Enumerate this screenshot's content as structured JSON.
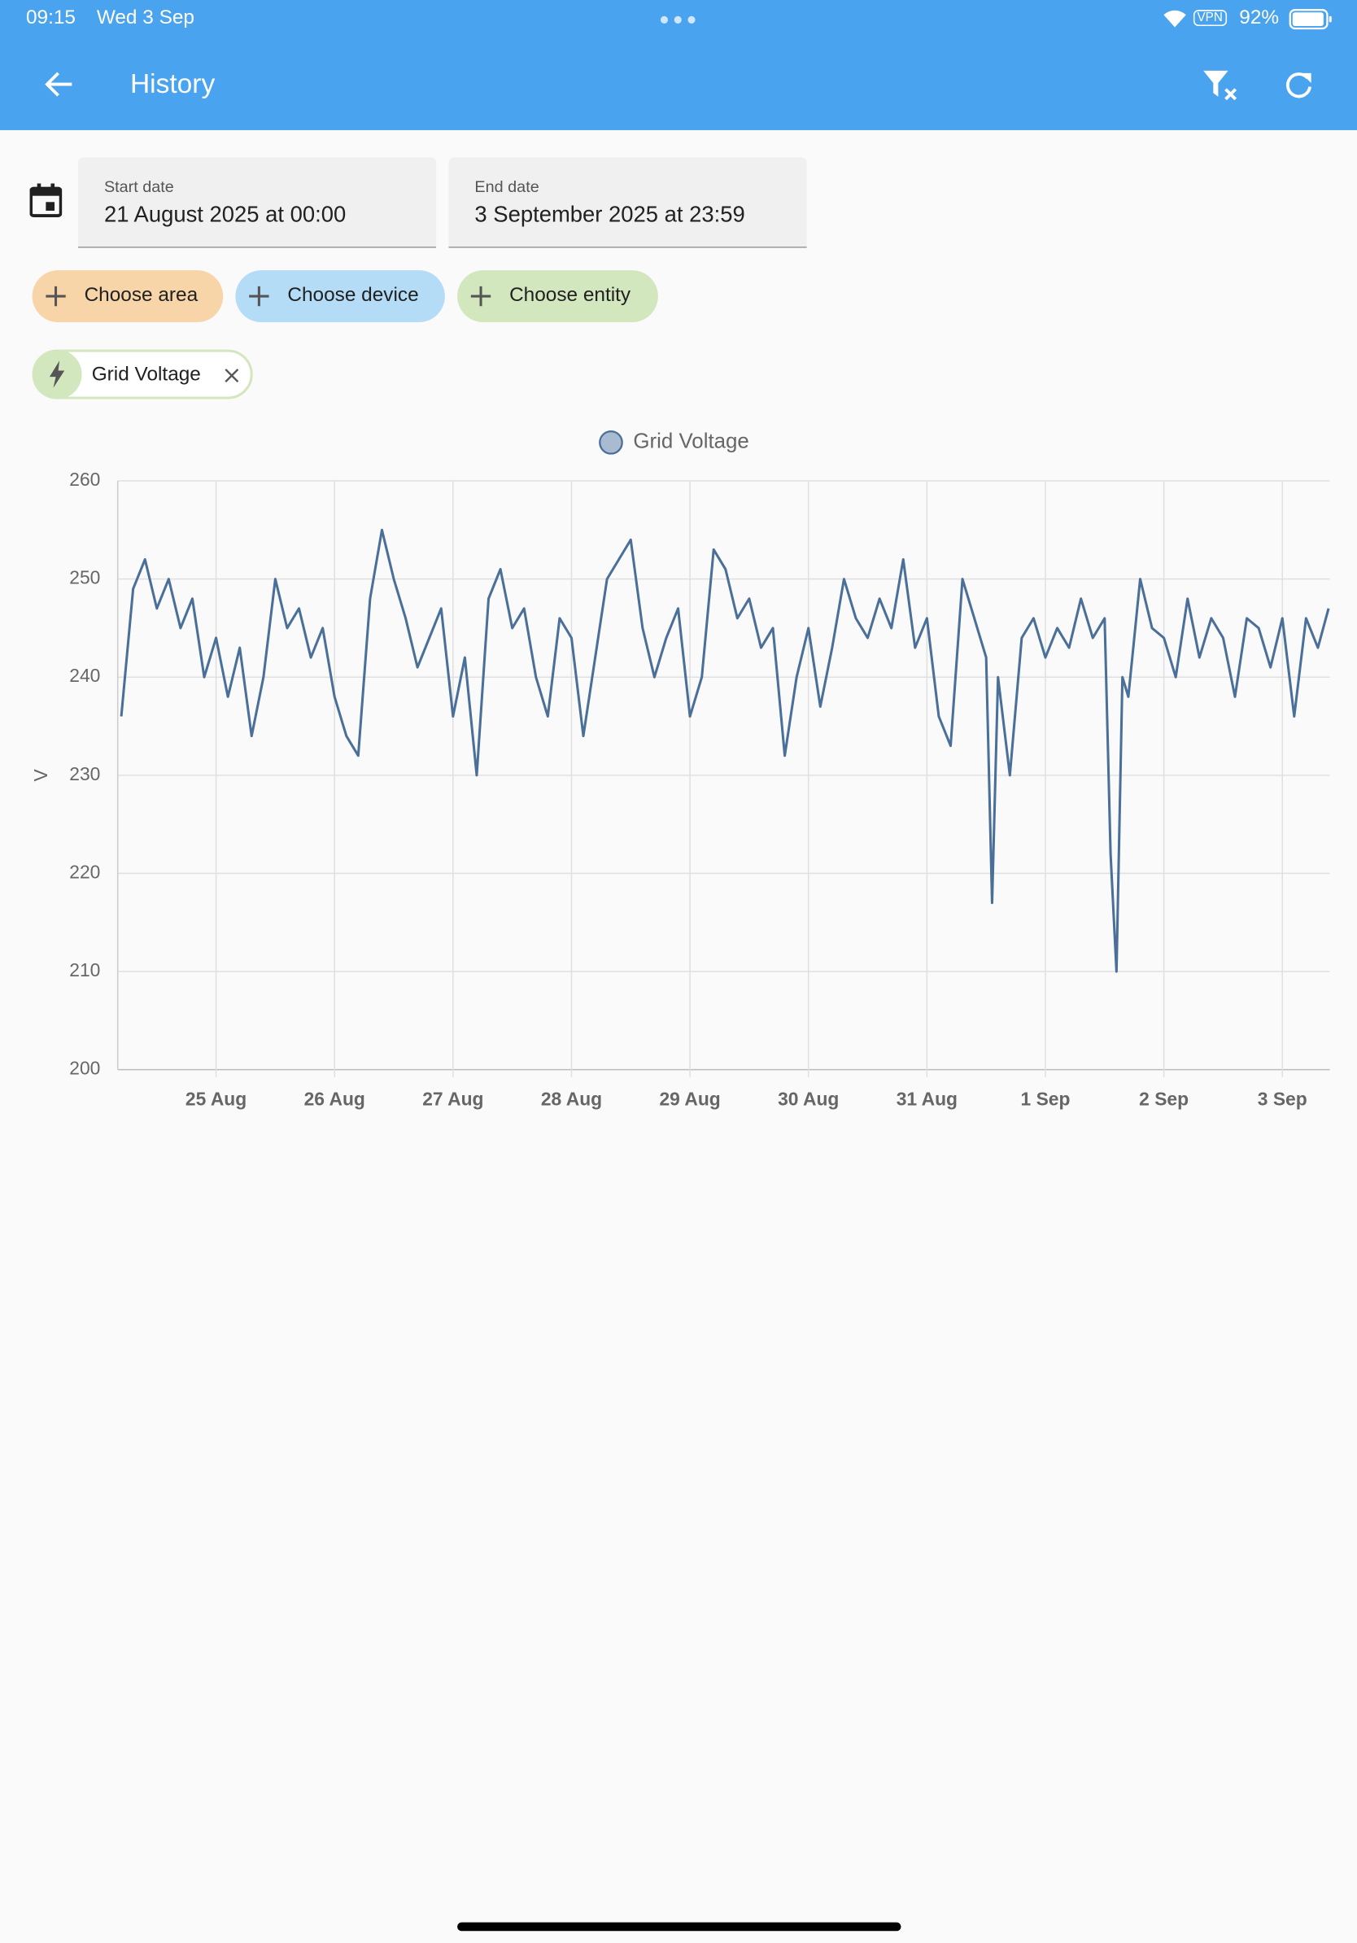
{
  "status_bar": {
    "time": "09:15",
    "date": "Wed 3 Sep",
    "vpn": "VPN",
    "battery": "92%"
  },
  "app_bar": {
    "title": "History"
  },
  "date_range": {
    "start_label": "Start date",
    "start_value": "21 August 2025 at 00:00",
    "end_label": "End date",
    "end_value": "3 September 2025 at 23:59"
  },
  "pickers": [
    "Choose area",
    "Choose device",
    "Choose entity"
  ],
  "selected_entities": [
    "Grid Voltage"
  ],
  "chart_data": {
    "type": "line",
    "ylabel": "V",
    "x": [
      24.2,
      24.3,
      24.4,
      24.5,
      24.6,
      24.7,
      24.8,
      24.9,
      25.0,
      25.1,
      25.2,
      25.3,
      25.4,
      25.5,
      25.6,
      25.7,
      25.8,
      25.9,
      26.0,
      26.1,
      26.2,
      26.3,
      26.4,
      26.5,
      26.6,
      26.7,
      26.8,
      26.9,
      27.0,
      27.1,
      27.2,
      27.3,
      27.4,
      27.5,
      27.6,
      27.7,
      27.8,
      27.9,
      28.0,
      28.1,
      28.2,
      28.3,
      28.4,
      28.5,
      28.6,
      28.7,
      28.8,
      28.9,
      29.0,
      29.1,
      29.2,
      29.3,
      29.4,
      29.5,
      29.6,
      29.7,
      29.8,
      29.9,
      30.0,
      30.1,
      30.2,
      30.3,
      30.4,
      30.5,
      30.6,
      30.7,
      30.8,
      30.9,
      31.0,
      31.1,
      31.2,
      31.3,
      31.4,
      31.5,
      31.55,
      31.6,
      31.7,
      31.8,
      31.9,
      32.0,
      32.1,
      32.2,
      32.3,
      32.4,
      32.5,
      32.55,
      32.6,
      32.65,
      32.7,
      32.8,
      32.9,
      33.0,
      33.1,
      33.2,
      33.3,
      33.4,
      33.5,
      33.6,
      33.7,
      33.8,
      33.9,
      34.0,
      34.1,
      34.2,
      34.3,
      34.39
    ],
    "series": [
      {
        "name": "Grid Voltage",
        "color": "#4a6f99",
        "values": [
          236,
          249,
          252,
          247,
          250,
          245,
          248,
          240,
          244,
          238,
          243,
          234,
          240,
          250,
          245,
          247,
          242,
          245,
          238,
          234,
          232,
          248,
          255,
          250,
          246,
          241,
          244,
          247,
          236,
          242,
          230,
          248,
          251,
          245,
          247,
          240,
          236,
          246,
          244,
          234,
          242,
          250,
          252,
          254,
          245,
          240,
          244,
          247,
          236,
          240,
          253,
          251,
          246,
          248,
          243,
          245,
          232,
          240,
          245,
          237,
          243,
          250,
          246,
          244,
          248,
          245,
          252,
          243,
          246,
          236,
          233,
          250,
          246,
          242,
          217,
          240,
          230,
          244,
          246,
          242,
          245,
          243,
          248,
          244,
          246,
          222,
          210,
          240,
          238,
          250,
          245,
          244,
          240,
          248,
          242,
          246,
          244,
          238,
          246,
          245,
          241,
          246,
          236,
          246,
          243,
          247
        ]
      }
    ],
    "xlim": [
      24.17,
      34.4
    ],
    "xticks": [
      {
        "value": 25,
        "label": "25 Aug"
      },
      {
        "value": 26,
        "label": "26 Aug"
      },
      {
        "value": 27,
        "label": "27 Aug"
      },
      {
        "value": 28,
        "label": "28 Aug"
      },
      {
        "value": 29,
        "label": "29 Aug"
      },
      {
        "value": 30,
        "label": "30 Aug"
      },
      {
        "value": 31,
        "label": "31 Aug"
      },
      {
        "value": 32,
        "label": "1 Sep"
      },
      {
        "value": 33,
        "label": "2 Sep"
      },
      {
        "value": 34,
        "label": "3 Sep"
      }
    ],
    "ylim": [
      200,
      260
    ],
    "yticks": [
      200,
      210,
      220,
      230,
      240,
      250,
      260
    ],
    "grid": true
  }
}
